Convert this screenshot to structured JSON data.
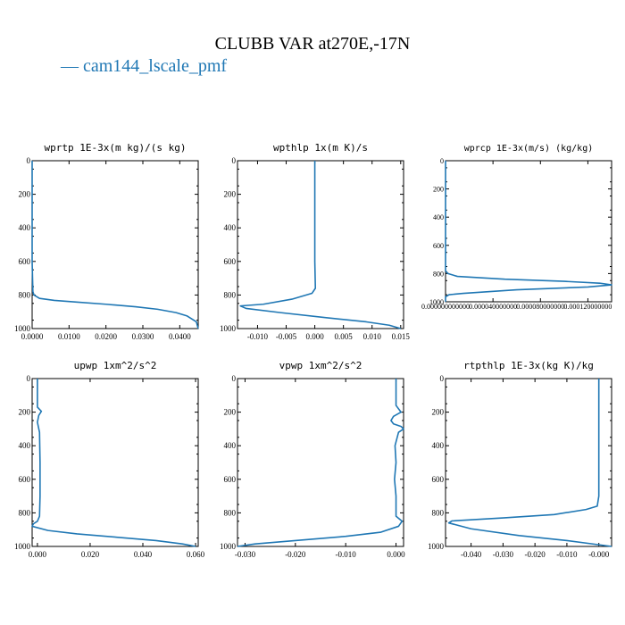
{
  "figure": {
    "title": "CLUBB VAR at270E,-17N",
    "legend": "— cam144_lscale_pmf",
    "line_color": "#1f77b4",
    "legend_color": "#1f77b4",
    "legend_placement": "top-left"
  },
  "chart_data": [
    {
      "type": "line",
      "title": "wprtp  1E-3x(m kg)/(s kg)",
      "xlim": [
        0,
        0.045
      ],
      "ylim": [
        1000,
        0
      ],
      "xticks": [
        0,
        0.01,
        0.02,
        0.03,
        0.04
      ],
      "xtick_labels": [
        "0.0000",
        "0.0100",
        "0.0200",
        "0.0300",
        "0.0400"
      ],
      "yticks": [
        0,
        200,
        400,
        600,
        800,
        1000
      ],
      "ytick_labels": [
        "0",
        "200",
        "400",
        "600",
        "800",
        "1000"
      ],
      "series": [
        {
          "x": [
            0,
            0,
            0,
            0,
            0.0002,
            0.0005,
            0.002,
            0.006,
            0.012,
            0.02,
            0.028,
            0.034,
            0.039,
            0.042,
            0.0445,
            0.045
          ],
          "y": [
            0,
            200,
            400,
            600,
            780,
            800,
            820,
            832,
            842,
            855,
            870,
            885,
            905,
            925,
            960,
            1000
          ]
        }
      ]
    },
    {
      "type": "line",
      "title": "wpthlp  1x(m K)/s",
      "xlim": [
        -0.0135,
        0.0155
      ],
      "ylim": [
        1000,
        0
      ],
      "xticks": [
        -0.01,
        -0.005,
        0,
        0.005,
        0.01,
        0.015
      ],
      "xtick_labels": [
        "-0.010",
        "-0.005",
        "0.000",
        "0.005",
        "0.010",
        "0.015"
      ],
      "yticks": [
        0,
        200,
        400,
        600,
        800,
        1000
      ],
      "ytick_labels": [
        "0",
        "200",
        "400",
        "600",
        "800",
        "1000"
      ],
      "series": [
        {
          "x": [
            0,
            0,
            0,
            0,
            0.0001,
            -0.0005,
            -0.004,
            -0.009,
            -0.013,
            -0.012,
            -0.006,
            0.002,
            0.009,
            0.013,
            0.015
          ],
          "y": [
            0,
            200,
            400,
            600,
            760,
            790,
            825,
            855,
            865,
            880,
            905,
            935,
            960,
            980,
            1000
          ]
        }
      ]
    },
    {
      "type": "line",
      "title": "wprcp  1E-3x(m/s) (kg/kg)",
      "xlim": [
        0,
        0.00014
      ],
      "ylim": [
        1000,
        0
      ],
      "xticks": [
        0,
        4e-05,
        8e-05,
        0.00012
      ],
      "xtick_labels": [
        "0.000000000000",
        "0.000040000000",
        "0.000080000000",
        "0.000120000000"
      ],
      "yticks": [
        0,
        200,
        400,
        600,
        800,
        1000
      ],
      "ytick_labels": [
        "0",
        "200",
        "400",
        "600",
        "800",
        "1000"
      ],
      "series": [
        {
          "x": [
            0,
            0,
            0,
            2e-06,
            1e-05,
            5e-05,
            0.0001,
            0.00013,
            0.00014,
            0.00012,
            6e-05,
            1.5e-05,
            3e-06,
            0,
            0
          ],
          "y": [
            0,
            400,
            780,
            800,
            820,
            840,
            855,
            868,
            880,
            895,
            915,
            940,
            950,
            965,
            1000
          ]
        }
      ]
    },
    {
      "type": "line",
      "title": "upwp  1xm^2/s^2",
      "xlim": [
        -0.002,
        0.061
      ],
      "ylim": [
        1000,
        0
      ],
      "xticks": [
        0,
        0.02,
        0.04,
        0.06
      ],
      "xtick_labels": [
        "0.000",
        "0.020",
        "0.040",
        "0.060"
      ],
      "yticks": [
        0,
        200,
        400,
        600,
        800,
        1000
      ],
      "ytick_labels": [
        "0",
        "200",
        "400",
        "600",
        "800",
        "1000"
      ],
      "series": [
        {
          "x": [
            0,
            0,
            0.0015,
            0.0005,
            0,
            0.0008,
            0.001,
            0.001,
            0.0008,
            0,
            -0.0015,
            -0.002,
            0.004,
            0.015,
            0.03,
            0.045,
            0.055,
            0.06
          ],
          "y": [
            0,
            170,
            195,
            220,
            260,
            320,
            500,
            700,
            820,
            850,
            865,
            880,
            905,
            925,
            945,
            965,
            985,
            1000
          ]
        }
      ]
    },
    {
      "type": "line",
      "title": "vpwp  1xm^2/s^2",
      "xlim": [
        -0.0315,
        0.0015
      ],
      "ylim": [
        1000,
        0
      ],
      "xticks": [
        -0.03,
        -0.02,
        -0.01,
        0
      ],
      "xtick_labels": [
        "-0.030",
        "-0.020",
        "-0.010",
        "0.000"
      ],
      "yticks": [
        0,
        200,
        400,
        600,
        800,
        1000
      ],
      "ytick_labels": [
        "0",
        "200",
        "400",
        "600",
        "800",
        "1000"
      ],
      "series": [
        {
          "x": [
            0,
            0,
            0.001,
            -0.0005,
            -0.001,
            -0.0005,
            0.001,
            0.0015,
            0.0005,
            -0.0002,
            0,
            -0.0003,
            0,
            0,
            0.0012,
            0.0005,
            -0.003,
            -0.01,
            -0.02,
            -0.028,
            -0.0315
          ],
          "y": [
            0,
            160,
            200,
            225,
            250,
            270,
            285,
            300,
            320,
            400,
            500,
            600,
            700,
            820,
            850,
            880,
            915,
            940,
            965,
            985,
            1000
          ]
        }
      ]
    },
    {
      "type": "line",
      "title": "rtpthlp  1E-3x(kg K)/kg",
      "xlim": [
        -0.048,
        0.004
      ],
      "ylim": [
        1000,
        0
      ],
      "xticks": [
        -0.04,
        -0.03,
        -0.02,
        -0.01,
        0
      ],
      "xtick_labels": [
        "-0.040",
        "-0.030",
        "-0.020",
        "-0.010",
        "-0.000"
      ],
      "yticks": [
        0,
        200,
        400,
        600,
        800,
        1000
      ],
      "ytick_labels": [
        "0",
        "200",
        "400",
        "600",
        "800",
        "1000"
      ],
      "series": [
        {
          "x": [
            0,
            0,
            0,
            -0.0005,
            -0.004,
            -0.014,
            -0.03,
            -0.046,
            -0.047,
            -0.04,
            -0.025,
            -0.01,
            0,
            0.004
          ],
          "y": [
            0,
            400,
            700,
            760,
            780,
            810,
            830,
            848,
            860,
            895,
            935,
            965,
            990,
            1000
          ]
        }
      ]
    }
  ]
}
